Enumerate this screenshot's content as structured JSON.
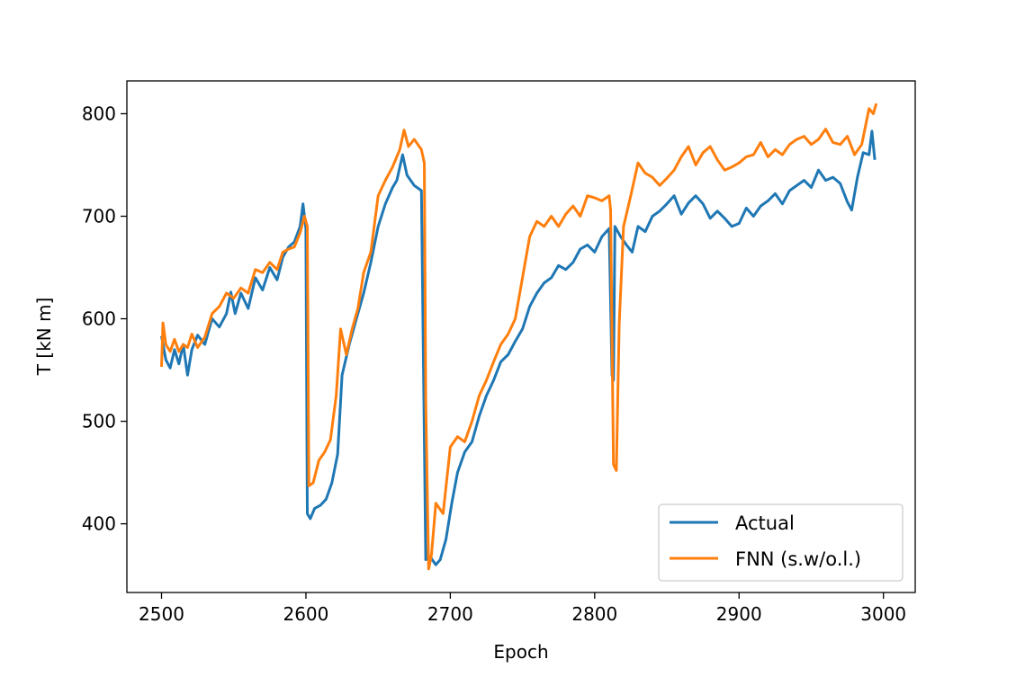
{
  "chart_data": {
    "type": "line",
    "title": "",
    "xlabel": "Epoch",
    "ylabel": "T [kN m]",
    "xlim": [
      2476,
      3022
    ],
    "ylim": [
      333,
      832
    ],
    "xticks": [
      2500,
      2600,
      2700,
      2800,
      2900,
      3000
    ],
    "yticks": [
      400,
      500,
      600,
      700,
      800
    ],
    "grid": false,
    "legend_position": "lower-right",
    "series": [
      {
        "name": "Actual",
        "color": "#1f77b4",
        "points": [
          [
            2500,
            583
          ],
          [
            2503,
            560
          ],
          [
            2506,
            552
          ],
          [
            2509,
            570
          ],
          [
            2512,
            556
          ],
          [
            2515,
            575
          ],
          [
            2518,
            545
          ],
          [
            2521,
            570
          ],
          [
            2525,
            584
          ],
          [
            2530,
            575
          ],
          [
            2535,
            600
          ],
          [
            2540,
            592
          ],
          [
            2545,
            605
          ],
          [
            2548,
            626
          ],
          [
            2551,
            605
          ],
          [
            2555,
            625
          ],
          [
            2560,
            610
          ],
          [
            2565,
            640
          ],
          [
            2570,
            628
          ],
          [
            2575,
            650
          ],
          [
            2580,
            638
          ],
          [
            2584,
            660
          ],
          [
            2588,
            670
          ],
          [
            2592,
            675
          ],
          [
            2596,
            690
          ],
          [
            2598,
            712
          ],
          [
            2600,
            688
          ],
          [
            2601,
            410
          ],
          [
            2603,
            405
          ],
          [
            2606,
            415
          ],
          [
            2610,
            418
          ],
          [
            2614,
            424
          ],
          [
            2618,
            440
          ],
          [
            2622,
            468
          ],
          [
            2625,
            545
          ],
          [
            2630,
            575
          ],
          [
            2635,
            600
          ],
          [
            2640,
            625
          ],
          [
            2645,
            655
          ],
          [
            2650,
            690
          ],
          [
            2655,
            712
          ],
          [
            2660,
            728
          ],
          [
            2663,
            735
          ],
          [
            2667,
            760
          ],
          [
            2670,
            740
          ],
          [
            2675,
            730
          ],
          [
            2680,
            725
          ],
          [
            2683,
            365
          ],
          [
            2686,
            368
          ],
          [
            2690,
            360
          ],
          [
            2693,
            365
          ],
          [
            2697,
            385
          ],
          [
            2701,
            420
          ],
          [
            2705,
            450
          ],
          [
            2710,
            470
          ],
          [
            2715,
            480
          ],
          [
            2720,
            505
          ],
          [
            2725,
            525
          ],
          [
            2730,
            540
          ],
          [
            2735,
            558
          ],
          [
            2740,
            565
          ],
          [
            2745,
            578
          ],
          [
            2750,
            590
          ],
          [
            2755,
            612
          ],
          [
            2760,
            625
          ],
          [
            2765,
            635
          ],
          [
            2770,
            640
          ],
          [
            2775,
            652
          ],
          [
            2780,
            648
          ],
          [
            2785,
            655
          ],
          [
            2790,
            668
          ],
          [
            2795,
            672
          ],
          [
            2800,
            665
          ],
          [
            2805,
            680
          ],
          [
            2810,
            688
          ],
          [
            2812,
            545
          ],
          [
            2813,
            540
          ],
          [
            2814,
            690
          ],
          [
            2818,
            680
          ],
          [
            2822,
            672
          ],
          [
            2826,
            665
          ],
          [
            2830,
            690
          ],
          [
            2835,
            685
          ],
          [
            2840,
            700
          ],
          [
            2845,
            705
          ],
          [
            2850,
            712
          ],
          [
            2855,
            720
          ],
          [
            2860,
            702
          ],
          [
            2865,
            713
          ],
          [
            2870,
            720
          ],
          [
            2875,
            712
          ],
          [
            2880,
            698
          ],
          [
            2885,
            705
          ],
          [
            2890,
            698
          ],
          [
            2895,
            690
          ],
          [
            2900,
            693
          ],
          [
            2905,
            708
          ],
          [
            2910,
            700
          ],
          [
            2915,
            710
          ],
          [
            2920,
            715
          ],
          [
            2925,
            722
          ],
          [
            2930,
            712
          ],
          [
            2935,
            725
          ],
          [
            2940,
            730
          ],
          [
            2945,
            735
          ],
          [
            2950,
            728
          ],
          [
            2955,
            745
          ],
          [
            2960,
            735
          ],
          [
            2965,
            738
          ],
          [
            2970,
            732
          ],
          [
            2975,
            714
          ],
          [
            2978,
            706
          ],
          [
            2982,
            738
          ],
          [
            2986,
            762
          ],
          [
            2990,
            760
          ],
          [
            2992,
            783
          ],
          [
            2994,
            755
          ]
        ]
      },
      {
        "name": "FNN (s.w/o.l.)",
        "color": "#ff7f0e",
        "points": [
          [
            2500,
            553
          ],
          [
            2501,
            596
          ],
          [
            2503,
            575
          ],
          [
            2506,
            568
          ],
          [
            2509,
            580
          ],
          [
            2512,
            568
          ],
          [
            2515,
            575
          ],
          [
            2518,
            572
          ],
          [
            2521,
            585
          ],
          [
            2525,
            572
          ],
          [
            2530,
            582
          ],
          [
            2535,
            605
          ],
          [
            2540,
            612
          ],
          [
            2545,
            625
          ],
          [
            2550,
            620
          ],
          [
            2555,
            630
          ],
          [
            2560,
            625
          ],
          [
            2565,
            648
          ],
          [
            2570,
            645
          ],
          [
            2575,
            655
          ],
          [
            2580,
            648
          ],
          [
            2584,
            665
          ],
          [
            2588,
            668
          ],
          [
            2592,
            670
          ],
          [
            2596,
            684
          ],
          [
            2599,
            700
          ],
          [
            2601,
            690
          ],
          [
            2602,
            437
          ],
          [
            2605,
            440
          ],
          [
            2609,
            462
          ],
          [
            2613,
            470
          ],
          [
            2617,
            482
          ],
          [
            2621,
            525
          ],
          [
            2624,
            590
          ],
          [
            2628,
            565
          ],
          [
            2632,
            590
          ],
          [
            2636,
            610
          ],
          [
            2640,
            645
          ],
          [
            2645,
            665
          ],
          [
            2650,
            720
          ],
          [
            2655,
            735
          ],
          [
            2660,
            748
          ],
          [
            2665,
            765
          ],
          [
            2668,
            784
          ],
          [
            2671,
            768
          ],
          [
            2675,
            775
          ],
          [
            2680,
            765
          ],
          [
            2682,
            752
          ],
          [
            2683,
            520
          ],
          [
            2685,
            356
          ],
          [
            2687,
            370
          ],
          [
            2690,
            420
          ],
          [
            2695,
            410
          ],
          [
            2700,
            475
          ],
          [
            2705,
            485
          ],
          [
            2710,
            480
          ],
          [
            2715,
            500
          ],
          [
            2720,
            525
          ],
          [
            2725,
            540
          ],
          [
            2730,
            558
          ],
          [
            2735,
            575
          ],
          [
            2740,
            585
          ],
          [
            2745,
            600
          ],
          [
            2750,
            640
          ],
          [
            2755,
            680
          ],
          [
            2760,
            695
          ],
          [
            2765,
            690
          ],
          [
            2770,
            700
          ],
          [
            2775,
            690
          ],
          [
            2780,
            702
          ],
          [
            2785,
            710
          ],
          [
            2790,
            700
          ],
          [
            2795,
            720
          ],
          [
            2800,
            718
          ],
          [
            2805,
            715
          ],
          [
            2810,
            720
          ],
          [
            2811,
            706
          ],
          [
            2813,
            458
          ],
          [
            2815,
            452
          ],
          [
            2817,
            595
          ],
          [
            2820,
            690
          ],
          [
            2825,
            720
          ],
          [
            2830,
            752
          ],
          [
            2835,
            742
          ],
          [
            2840,
            738
          ],
          [
            2845,
            730
          ],
          [
            2850,
            737
          ],
          [
            2855,
            745
          ],
          [
            2860,
            758
          ],
          [
            2865,
            768
          ],
          [
            2870,
            750
          ],
          [
            2875,
            762
          ],
          [
            2880,
            768
          ],
          [
            2885,
            755
          ],
          [
            2890,
            745
          ],
          [
            2895,
            748
          ],
          [
            2900,
            752
          ],
          [
            2905,
            758
          ],
          [
            2910,
            760
          ],
          [
            2915,
            772
          ],
          [
            2920,
            758
          ],
          [
            2925,
            765
          ],
          [
            2930,
            760
          ],
          [
            2935,
            770
          ],
          [
            2940,
            775
          ],
          [
            2945,
            778
          ],
          [
            2950,
            770
          ],
          [
            2955,
            775
          ],
          [
            2960,
            785
          ],
          [
            2965,
            772
          ],
          [
            2970,
            770
          ],
          [
            2975,
            778
          ],
          [
            2980,
            760
          ],
          [
            2985,
            770
          ],
          [
            2990,
            805
          ],
          [
            2993,
            800
          ],
          [
            2995,
            810
          ]
        ]
      }
    ]
  }
}
